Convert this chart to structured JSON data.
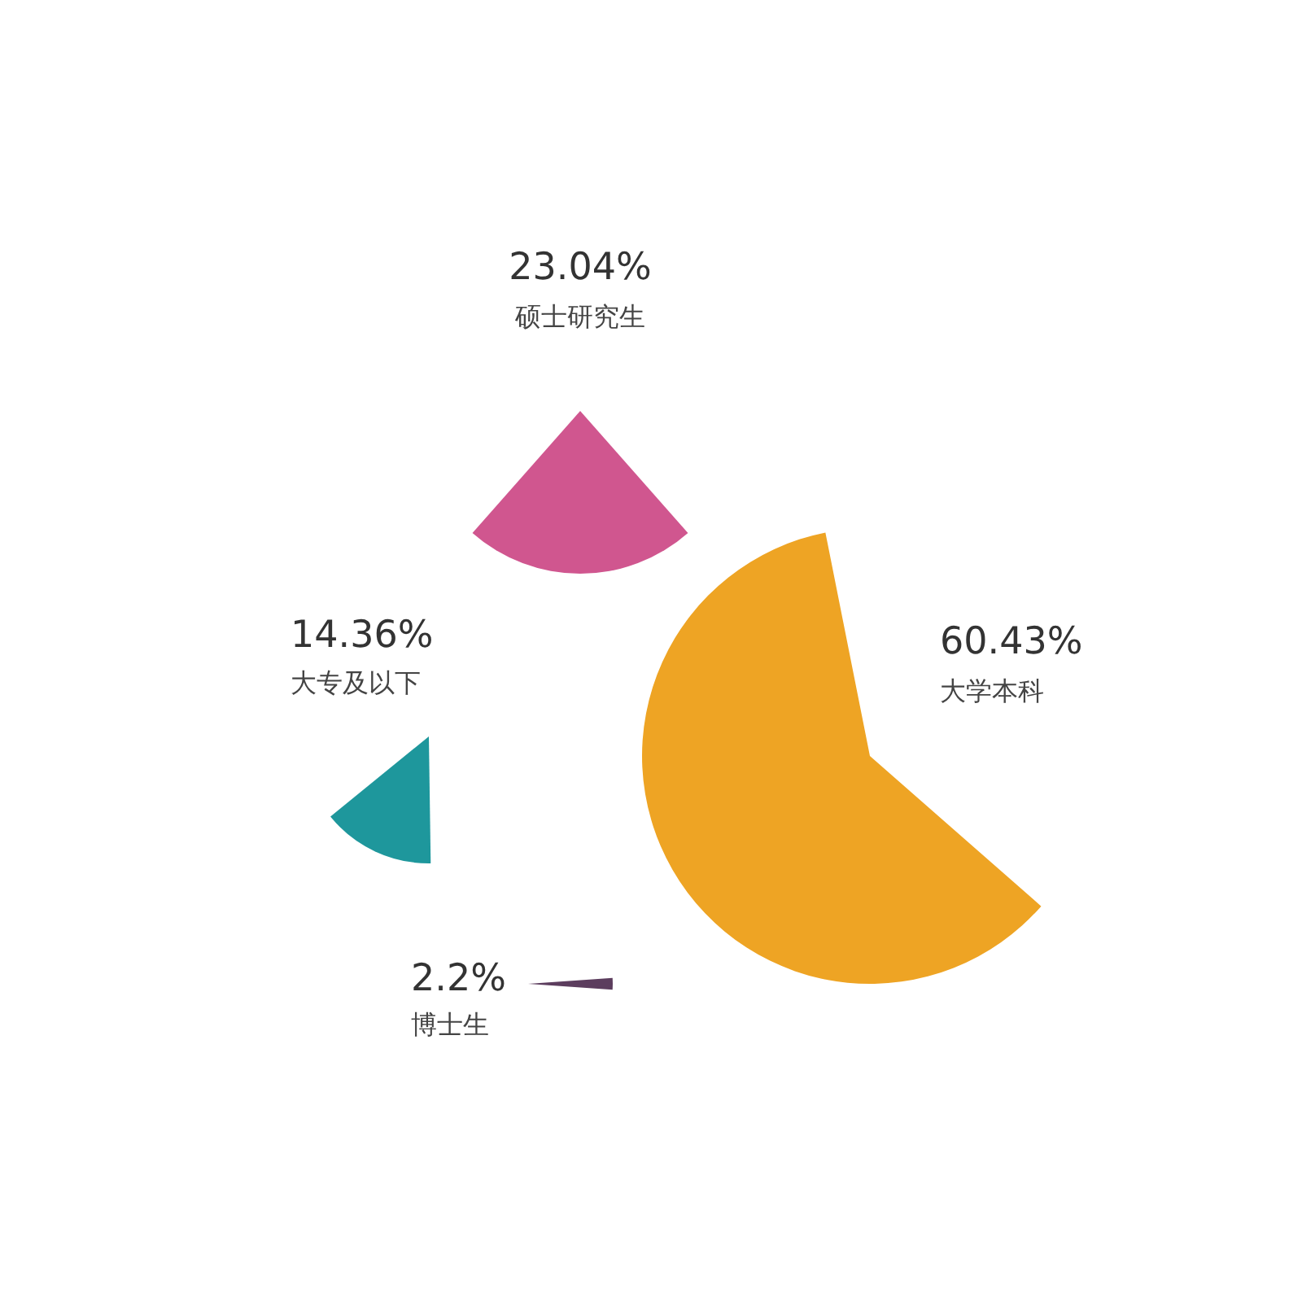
{
  "chart_data": {
    "type": "other",
    "categories": [
      "硕士研究生",
      "大专及以下",
      "大学本科",
      "博士生"
    ],
    "values": [
      23.04,
      14.36,
      60.43,
      2.2
    ],
    "value_labels": [
      "23.04%",
      "14.36%",
      "60.43%",
      "2.2%"
    ],
    "colors": [
      "#d0568f",
      "#1e979c",
      "#eea424",
      "#5c3d5e"
    ]
  }
}
